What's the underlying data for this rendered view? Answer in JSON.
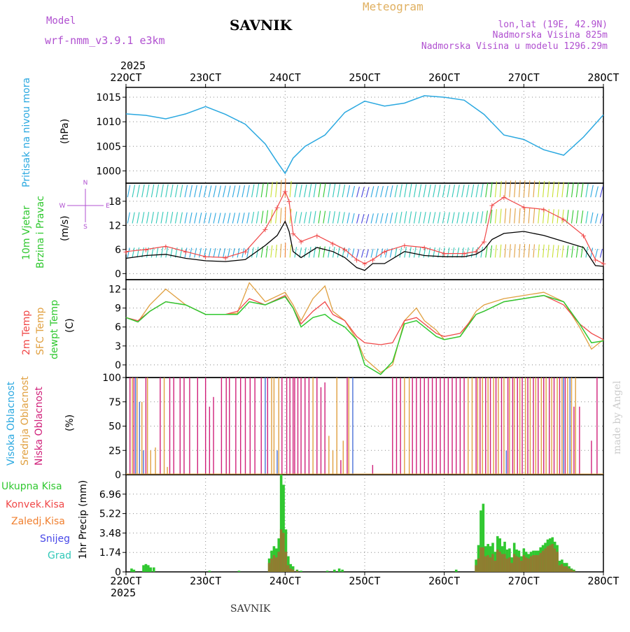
{
  "header": {
    "model_label": "Model",
    "model_name": "wrf-nmm_v3.9.1 e3km",
    "station": "SAVNIK",
    "product": "Meteogram",
    "lonlat": "lon,lat (19E, 42.9N)",
    "altitude": "Nadmorska Visina 825m",
    "model_altitude": "Nadmorska Visina u modelu 1296.29m",
    "year": "2025",
    "footer_station": "SAVNIK",
    "watermark": "made by Angel"
  },
  "colors": {
    "pressure": "#2aa8e0",
    "wind_speed": "#000000",
    "wind_gust": "#f04848",
    "temp2m": "#f04848",
    "sfc_temp": "#e0a040",
    "dewpt": "#30c830",
    "high_cloud": "#4a70d8",
    "mid_cloud": "#e0a040",
    "low_cloud": "#d0207a",
    "total_precip": "#30c830",
    "conv_precip": "#f04848",
    "frozen_precip": "#f08030",
    "snow": "#4848e8",
    "hail": "#30c8b8",
    "purple_text": "#b050d0"
  },
  "chart_data": [
    {
      "type": "line",
      "title": "Pritisak na nivou mora",
      "ylabel": "Pritisak na nivou mora (hPa)",
      "unit": "(hPa)",
      "x_ticks": [
        "22OCT",
        "23OCT",
        "24OCT",
        "25OCT",
        "26OCT",
        "27OCT",
        "28OCT"
      ],
      "ylim": [
        997.5,
        1017
      ],
      "yticks": [
        1000,
        1005,
        1010,
        1015
      ],
      "x": [
        22.0,
        22.25,
        22.5,
        22.75,
        23.0,
        23.25,
        23.5,
        23.75,
        23.9,
        24.0,
        24.1,
        24.25,
        24.5,
        24.75,
        25.0,
        25.25,
        25.5,
        25.75,
        26.0,
        26.25,
        26.5,
        26.75,
        27.0,
        27.25,
        27.5,
        27.75,
        28.0
      ],
      "series": [
        {
          "name": "MSLP",
          "values": [
            1011.6,
            1011.3,
            1010.6,
            1011.6,
            1013.1,
            1011.5,
            1009.5,
            1005.5,
            1001.8,
            999.5,
            1002.6,
            1005.0,
            1007.3,
            1011.9,
            1014.2,
            1013.2,
            1013.8,
            1015.3,
            1015.0,
            1014.4,
            1011.5,
            1007.3,
            1006.4,
            1004.3,
            1003.2,
            1006.9,
            1011.4
          ]
        }
      ]
    },
    {
      "type": "line",
      "title": "10m Vjetar Brzina i Pravac",
      "ylabel": "10m Vjetar Brzina i Pravac (m/s)",
      "unit": "(m/s)",
      "ylim": [
        -1.5,
        22.5
      ],
      "yticks": [
        0,
        6,
        12,
        18
      ],
      "compass": {
        "n": "N",
        "s": "S",
        "e": "E",
        "w": "W"
      },
      "x": [
        22.0,
        22.25,
        22.5,
        22.75,
        23.0,
        23.25,
        23.5,
        23.75,
        23.9,
        24.0,
        24.05,
        24.1,
        24.2,
        24.4,
        24.6,
        24.75,
        24.9,
        25.0,
        25.1,
        25.25,
        25.5,
        25.75,
        26.0,
        26.25,
        26.4,
        26.5,
        26.6,
        26.75,
        27.0,
        27.25,
        27.5,
        27.75,
        27.9,
        28.0
      ],
      "series": [
        {
          "name": "Brzina vjetra",
          "values": [
            3.8,
            4.5,
            4.8,
            3.8,
            3.2,
            3.0,
            3.5,
            7.0,
            9.5,
            13.0,
            10.5,
            5.5,
            4.0,
            6.5,
            5.5,
            4.0,
            1.5,
            0.8,
            2.5,
            2.5,
            5.5,
            4.5,
            4.2,
            4.2,
            4.8,
            6.0,
            8.5,
            10.0,
            10.5,
            9.5,
            8.0,
            6.5,
            2.0,
            1.8
          ]
        },
        {
          "name": "Udari vjetra",
          "values": [
            5.5,
            6.0,
            6.8,
            5.5,
            4.2,
            4.0,
            5.5,
            11.0,
            16.5,
            20.5,
            18.0,
            10.0,
            8.0,
            9.5,
            7.5,
            6.0,
            3.5,
            2.5,
            3.5,
            5.5,
            7.0,
            6.5,
            5.0,
            5.0,
            5.5,
            8.0,
            17.0,
            19.0,
            16.5,
            16.0,
            13.5,
            9.5,
            3.5,
            2.5
          ]
        }
      ]
    },
    {
      "type": "line",
      "title": "2m Temp, SFC Temp, dewpt Temp",
      "ylabel": "(C)",
      "unit": "(C)",
      "ylim": [
        -2,
        13.5
      ],
      "yticks": [
        0,
        3,
        6,
        9,
        12
      ],
      "x": [
        22.0,
        22.15,
        22.3,
        22.5,
        22.75,
        23.0,
        23.25,
        23.4,
        23.55,
        23.75,
        24.0,
        24.1,
        24.2,
        24.35,
        24.5,
        24.6,
        24.75,
        24.9,
        25.0,
        25.2,
        25.35,
        25.5,
        25.65,
        25.75,
        25.9,
        26.0,
        26.2,
        26.4,
        26.5,
        26.75,
        27.0,
        27.25,
        27.5,
        27.7,
        27.85,
        28.0
      ],
      "series": [
        {
          "name": "2m Temp",
          "values": [
            7.5,
            7.0,
            8.5,
            10.0,
            9.5,
            8.0,
            8.0,
            8.5,
            10.5,
            9.5,
            11.0,
            9.0,
            6.5,
            8.5,
            10.0,
            8.0,
            7.0,
            4.5,
            3.5,
            3.2,
            3.5,
            7.0,
            7.5,
            6.5,
            5.0,
            4.5,
            5.0,
            8.0,
            8.5,
            10.0,
            10.5,
            11.0,
            9.5,
            6.5,
            5.0,
            4.0
          ]
        },
        {
          "name": "SFC Temp",
          "values": [
            7.5,
            6.8,
            9.5,
            12.0,
            9.5,
            8.0,
            8.0,
            8.2,
            13.0,
            10.0,
            11.5,
            9.5,
            7.0,
            10.5,
            12.5,
            8.5,
            7.0,
            4.0,
            1.0,
            -1.2,
            0.0,
            7.0,
            9.0,
            7.0,
            5.5,
            4.0,
            4.5,
            8.5,
            9.5,
            10.5,
            11.0,
            11.5,
            10.0,
            6.0,
            2.5,
            4.0
          ]
        },
        {
          "name": "dewpt Temp",
          "values": [
            7.5,
            6.8,
            8.5,
            10.0,
            9.5,
            8.0,
            8.0,
            8.0,
            10.0,
            9.5,
            10.8,
            9.0,
            6.0,
            7.5,
            8.0,
            7.0,
            6.0,
            4.0,
            0.0,
            -1.5,
            0.5,
            6.5,
            7.0,
            6.0,
            4.5,
            4.0,
            4.5,
            8.0,
            8.5,
            10.0,
            10.5,
            11.0,
            10.0,
            6.5,
            3.5,
            3.8
          ]
        }
      ]
    },
    {
      "type": "bar",
      "title": "Visoka, Srednja i Niska Oblacnost",
      "ylabel": "(%)",
      "unit": "(%)",
      "ylim": [
        0,
        100
      ],
      "yticks": [
        0,
        25,
        50,
        75,
        100
      ],
      "series": [
        {
          "name": "Visoka Oblacnost",
          "x": [
            22.12,
            22.17,
            22.22,
            23.75,
            23.9,
            24.85,
            26.78,
            27.5,
            27.58
          ],
          "values": [
            100,
            75,
            25,
            100,
            25,
            100,
            25,
            100,
            100
          ]
        },
        {
          "name": "Srednja Oblacnost",
          "x": [
            22.08,
            22.14,
            22.2,
            22.27,
            22.31,
            22.37,
            22.48,
            22.52,
            23.83,
            23.86,
            23.92,
            24.35,
            24.55,
            24.6,
            24.65,
            24.73,
            24.8,
            25.5,
            25.56,
            26.3,
            26.35,
            26.42,
            26.48,
            26.55,
            26.62,
            26.68,
            26.75,
            26.82,
            26.88,
            26.95,
            27.02,
            27.08,
            27.15,
            27.22,
            27.28,
            27.35,
            27.42,
            27.48,
            27.55,
            27.6,
            27.65
          ],
          "values": [
            100,
            100,
            75,
            100,
            25,
            28,
            100,
            8,
            100,
            100,
            100,
            100,
            40,
            25,
            100,
            35,
            100,
            100,
            100,
            100,
            100,
            100,
            100,
            100,
            100,
            100,
            100,
            100,
            100,
            100,
            100,
            100,
            100,
            100,
            100,
            100,
            100,
            100,
            100,
            100,
            100
          ]
        },
        {
          "name": "Niska Oblacnost",
          "x": [
            22.05,
            22.1,
            22.25,
            22.43,
            22.55,
            22.6,
            22.68,
            22.73,
            22.8,
            22.9,
            23.0,
            23.05,
            23.1,
            23.2,
            23.26,
            23.3,
            23.38,
            23.44,
            23.5,
            23.56,
            23.62,
            23.7,
            23.78,
            23.96,
            24.02,
            24.06,
            24.1,
            24.12,
            24.16,
            24.2,
            24.25,
            24.3,
            24.4,
            24.45,
            24.5,
            24.7,
            24.78,
            25.1,
            25.35,
            25.4,
            25.45,
            25.6,
            25.65,
            25.7,
            25.75,
            25.8,
            25.85,
            25.9,
            25.95,
            26.0,
            26.05,
            26.1,
            26.15,
            26.2,
            26.25,
            26.4,
            26.45,
            26.52,
            26.58,
            26.65,
            26.72,
            26.8,
            26.86,
            26.92,
            26.98,
            27.05,
            27.12,
            27.18,
            27.25,
            27.32,
            27.38,
            27.45,
            27.52,
            27.63,
            27.7,
            27.85,
            27.92
          ],
          "values": [
            100,
            100,
            100,
            100,
            100,
            100,
            100,
            100,
            100,
            100,
            100,
            70,
            80,
            100,
            100,
            100,
            100,
            100,
            100,
            100,
            100,
            100,
            100,
            100,
            100,
            100,
            100,
            100,
            100,
            100,
            100,
            100,
            100,
            90,
            95,
            15,
            100,
            10,
            100,
            100,
            100,
            100,
            100,
            100,
            100,
            100,
            100,
            100,
            100,
            100,
            100,
            100,
            100,
            100,
            100,
            100,
            100,
            100,
            100,
            100,
            100,
            100,
            100,
            100,
            100,
            100,
            100,
            100,
            100,
            100,
            100,
            100,
            100,
            70,
            70,
            35,
            100
          ]
        }
      ]
    },
    {
      "type": "bar",
      "title": "1hr Precip",
      "ylabel": "1hr Precip (mm)",
      "unit": "(mm)",
      "ylim": [
        0,
        8.7
      ],
      "yticks": [
        0,
        1.74,
        3.48,
        5.22,
        6.96
      ],
      "ytick_labels": [
        "0",
        "1.74",
        "3.48",
        "5.22",
        "6.96"
      ],
      "x_bottom_labels": [
        "22OCT",
        "23OCT",
        "24OCT",
        "25OCT",
        "26OCT",
        "27OCT",
        "28OCT"
      ],
      "legend": [
        "Ukupna Kisa",
        "Konvek.Kisa",
        "Zaledj.Kisa",
        "Snijeg",
        "Grad"
      ],
      "x": [
        22.07,
        22.1,
        22.22,
        22.25,
        22.28,
        22.31,
        22.35,
        23.05,
        23.42,
        23.8,
        23.83,
        23.86,
        23.89,
        23.92,
        23.95,
        23.98,
        24.01,
        24.04,
        24.07,
        24.1,
        24.15,
        24.2,
        24.53,
        24.62,
        24.68,
        24.72,
        26.15,
        26.4,
        26.43,
        26.46,
        26.49,
        26.52,
        26.55,
        26.58,
        26.61,
        26.64,
        26.67,
        26.7,
        26.73,
        26.76,
        26.79,
        26.82,
        26.85,
        26.88,
        26.91,
        26.94,
        26.97,
        27.0,
        27.03,
        27.06,
        27.09,
        27.12,
        27.15,
        27.18,
        27.21,
        27.24,
        27.27,
        27.3,
        27.33,
        27.36,
        27.39,
        27.42,
        27.45,
        27.48,
        27.51,
        27.54,
        27.57,
        27.6,
        27.63
      ],
      "series": [
        {
          "name": "Ukupna Kisa",
          "values": [
            0.3,
            0.2,
            0.6,
            0.7,
            0.6,
            0.4,
            0.4,
            0.1,
            0.1,
            1.2,
            1.9,
            2.3,
            2.1,
            3.0,
            8.7,
            7.8,
            3.8,
            1.4,
            0.7,
            0.5,
            0.2,
            0.1,
            0.1,
            0.2,
            0.3,
            0.2,
            0.2,
            1.1,
            2.4,
            5.5,
            6.1,
            2.3,
            2.5,
            2.3,
            2.6,
            1.8,
            3.2,
            3.0,
            2.3,
            2.7,
            2.0,
            2.1,
            1.3,
            2.6,
            2.0,
            1.9,
            1.4,
            2.1,
            1.8,
            1.6,
            1.8,
            1.9,
            1.9,
            1.9,
            2.2,
            2.4,
            2.6,
            2.9,
            3.0,
            3.1,
            2.7,
            2.4,
            1.0,
            1.1,
            0.8,
            0.8,
            0.5,
            0.3,
            0.2
          ]
        },
        {
          "name": "Konvek.Kisa",
          "values": [
            0,
            0,
            0,
            0,
            0,
            0,
            0,
            0,
            0,
            0.8,
            1.2,
            1.5,
            1.3,
            1.8,
            3.8,
            3.5,
            1.8,
            0.6,
            0.3,
            0.2,
            0.1,
            0,
            0,
            0,
            0,
            0,
            0,
            0.6,
            1.2,
            2.2,
            2.2,
            1.4,
            1.5,
            1.3,
            1.6,
            1.0,
            2.0,
            1.8,
            1.6,
            1.6,
            1.2,
            1.3,
            0.8,
            1.6,
            1.4,
            1.3,
            1.0,
            1.5,
            1.3,
            1.2,
            1.4,
            1.5,
            1.5,
            1.5,
            1.7,
            1.9,
            2.1,
            2.3,
            2.4,
            2.5,
            2.1,
            1.8,
            0.6,
            0.7,
            0.5,
            0.5,
            0.3,
            0.2,
            0.1
          ]
        }
      ]
    }
  ]
}
